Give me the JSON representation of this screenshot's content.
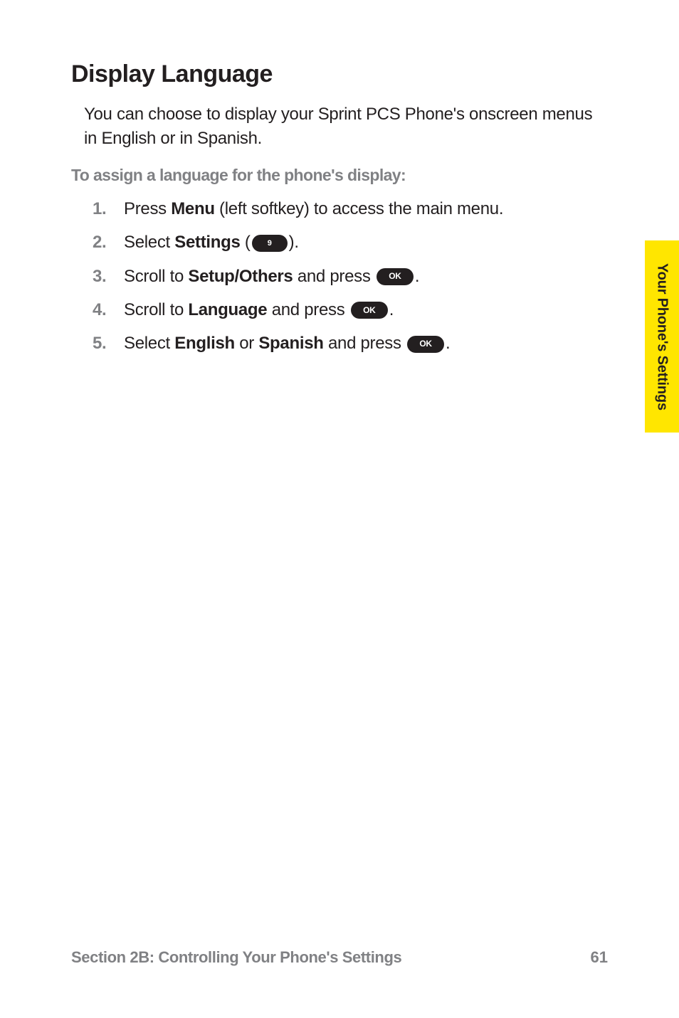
{
  "heading": "Display Language",
  "intro": "You can choose to display your Sprint PCS Phone's onscreen menus in English or in Spanish.",
  "subheading": "To assign a language for the phone's display:",
  "steps": [
    {
      "num": "1.",
      "pre": "Press ",
      "bold1": "Menu",
      "post1": " (left softkey) to access the main menu."
    },
    {
      "num": "2.",
      "pre": "Select ",
      "bold1": "Settings",
      "post1": " (",
      "key": "9",
      "keyclass": "num",
      "post2": ")."
    },
    {
      "num": "3.",
      "pre": "Scroll to ",
      "bold1": "Setup/Others",
      "post1": " and press ",
      "key": "OK",
      "post2": "."
    },
    {
      "num": "4.",
      "pre": "Scroll to ",
      "bold1": "Language",
      "post1": " and press ",
      "key": "OK",
      "post2": "."
    },
    {
      "num": "5.",
      "pre": "Select ",
      "bold1": "English",
      "mid": " or ",
      "bold2": "Spanish",
      "post1": " and press ",
      "key": "OK",
      "post2": "."
    }
  ],
  "sideTab": "Your Phone's Settings",
  "footerLeft": "Section 2B: Controlling Your Phone's Settings",
  "footerRight": "61",
  "colors": {
    "tabBg": "#ffe600",
    "grayText": "#808184",
    "keyBg": "#231f20",
    "bodyText": "#231f20"
  }
}
